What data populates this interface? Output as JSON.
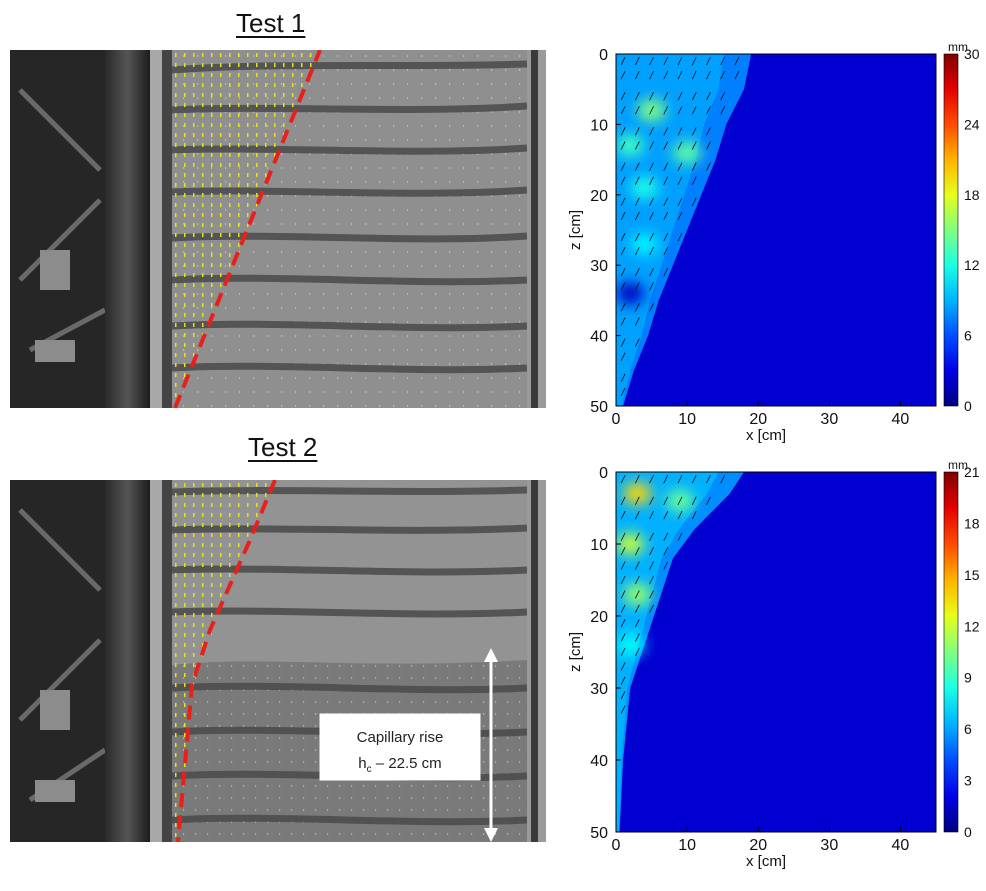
{
  "panels": {
    "test1": {
      "title": "Test 1"
    },
    "test2": {
      "title": "Test 2",
      "annotation": {
        "line1": "Capillary rise",
        "h": "h",
        "sub": "c",
        "rest": " – 22.5 cm"
      }
    }
  },
  "colors": {
    "failure_line": "#e8201c",
    "vectors": "#e8e21a",
    "background": "#00008f"
  },
  "chart_data": [
    {
      "type": "heatmap",
      "title": "",
      "xlabel": "x [cm]",
      "ylabel": "z [cm]",
      "xlim": [
        0,
        45
      ],
      "ylim": [
        50,
        0
      ],
      "xticks": [
        0,
        10,
        20,
        30,
        40
      ],
      "yticks": [
        0,
        10,
        20,
        30,
        40,
        50
      ],
      "colorbar": {
        "unit": "mm",
        "min": 0,
        "max": 30,
        "ticks": [
          0,
          6,
          12,
          18,
          24,
          30
        ]
      },
      "displacement_region": [
        {
          "z": 0,
          "x_extent": 19
        },
        {
          "z": 5,
          "x_extent": 18
        },
        {
          "z": 10,
          "x_extent": 15.5
        },
        {
          "z": 15,
          "x_extent": 14
        },
        {
          "z": 20,
          "x_extent": 12
        },
        {
          "z": 25,
          "x_extent": 10
        },
        {
          "z": 30,
          "x_extent": 8
        },
        {
          "z": 35,
          "x_extent": 6
        },
        {
          "z": 40,
          "x_extent": 4.5
        },
        {
          "z": 45,
          "x_extent": 2.5
        },
        {
          "z": 50,
          "x_extent": 1
        }
      ],
      "hotspots": [
        {
          "x": 5,
          "z": 8,
          "value": 15
        },
        {
          "x": 2,
          "z": 13,
          "value": 13
        },
        {
          "x": 10,
          "z": 14,
          "value": 14
        },
        {
          "x": 4,
          "z": 19,
          "value": 12
        },
        {
          "x": 4,
          "z": 27,
          "value": 11
        },
        {
          "x": 2,
          "z": 34,
          "value": 2
        }
      ],
      "region_value": 8
    },
    {
      "type": "heatmap",
      "title": "",
      "xlabel": "x [cm]",
      "ylabel": "z [cm]",
      "xlim": [
        0,
        45
      ],
      "ylim": [
        50,
        0
      ],
      "xticks": [
        0,
        10,
        20,
        30,
        40
      ],
      "yticks": [
        0,
        10,
        20,
        30,
        40,
        50
      ],
      "colorbar": {
        "unit": "mm",
        "min": 0,
        "max": 21,
        "ticks": [
          0,
          3,
          6,
          9,
          12,
          15,
          18,
          21
        ]
      },
      "displacement_region": [
        {
          "z": 0,
          "x_extent": 18
        },
        {
          "z": 3,
          "x_extent": 16
        },
        {
          "z": 8,
          "x_extent": 11
        },
        {
          "z": 12,
          "x_extent": 8
        },
        {
          "z": 18,
          "x_extent": 6
        },
        {
          "z": 24,
          "x_extent": 4
        },
        {
          "z": 30,
          "x_extent": 2
        },
        {
          "z": 40,
          "x_extent": 1
        },
        {
          "z": 50,
          "x_extent": 0.5
        }
      ],
      "hotspots": [
        {
          "x": 3,
          "z": 3,
          "value": 14
        },
        {
          "x": 9,
          "z": 4,
          "value": 10
        },
        {
          "x": 2,
          "z": 10,
          "value": 12
        },
        {
          "x": 3,
          "z": 17,
          "value": 11
        },
        {
          "x": 2,
          "z": 24,
          "value": 8
        }
      ],
      "region_value": 6
    }
  ]
}
